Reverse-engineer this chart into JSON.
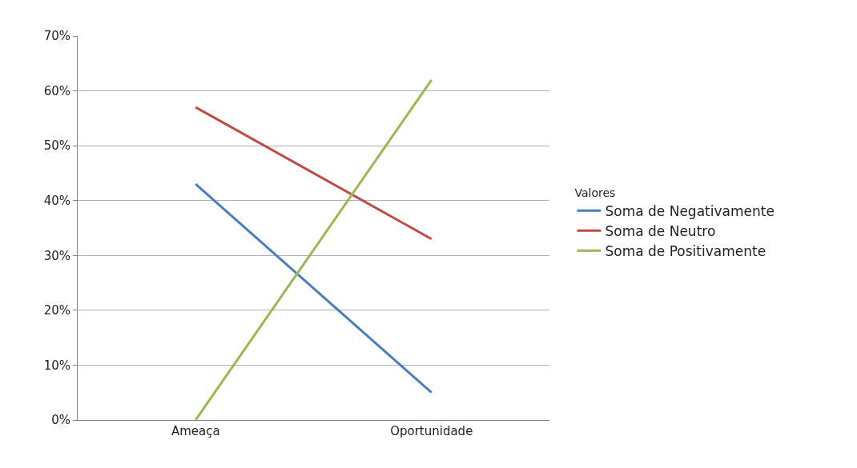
{
  "chart_data": {
    "type": "line",
    "categories": [
      "Ameaça",
      "Oportunidade"
    ],
    "series": [
      {
        "name": "Soma de Negativamente",
        "color": "#4a7ebb",
        "values": [
          43,
          5
        ]
      },
      {
        "name": "Soma de Neutro",
        "color": "#be4b48",
        "values": [
          57,
          33
        ]
      },
      {
        "name": "Soma de Positivamente",
        "color": "#98b954",
        "values": [
          0,
          62
        ]
      }
    ],
    "legend_title": "Valores",
    "legend": "right",
    "grid": "y",
    "marker": "none",
    "line_style": "solid",
    "ylim": [
      0,
      70
    ],
    "yticks": [
      {
        "value": 0,
        "label": "0%"
      },
      {
        "value": 10,
        "label": "10%"
      },
      {
        "value": 20,
        "label": "20%"
      },
      {
        "value": 30,
        "label": "30%"
      },
      {
        "value": 40,
        "label": "40%"
      },
      {
        "value": 50,
        "label": "50%"
      },
      {
        "value": 60,
        "label": "60%"
      },
      {
        "value": 70,
        "label": "70%"
      }
    ]
  }
}
